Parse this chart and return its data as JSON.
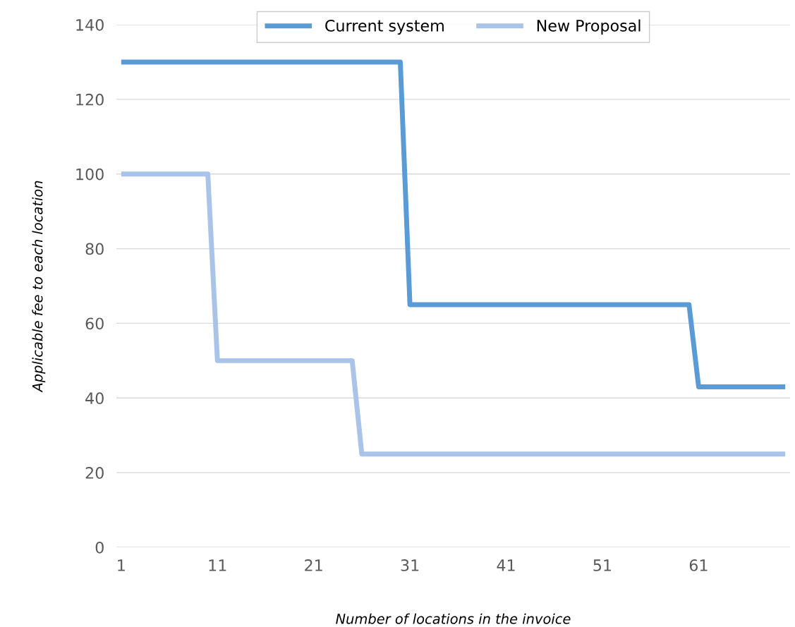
{
  "chart_data": {
    "type": "line",
    "xlabel": "Number of locations in the invoice",
    "ylabel": "Applicable fee to each location",
    "series": [
      {
        "name": "Current system",
        "color": "#5b9bd5",
        "x": [
          1,
          30,
          31,
          60,
          61,
          70
        ],
        "values": [
          130,
          130,
          65,
          65,
          43,
          43
        ]
      },
      {
        "name": "New Proposal",
        "color": "#a9c4e8",
        "x": [
          1,
          10,
          11,
          25,
          26,
          70
        ],
        "values": [
          100,
          100,
          50,
          50,
          25,
          25
        ]
      }
    ],
    "xlim": [
      0.5,
      70.5
    ],
    "xticks": [
      1,
      11,
      21,
      31,
      41,
      51,
      61
    ],
    "ylim": [
      0,
      140
    ],
    "yticks": [
      0,
      20,
      40,
      60,
      80,
      100,
      120,
      140
    ],
    "grid": "y",
    "legend": "top",
    "marker": "none",
    "line_style": "solid"
  }
}
